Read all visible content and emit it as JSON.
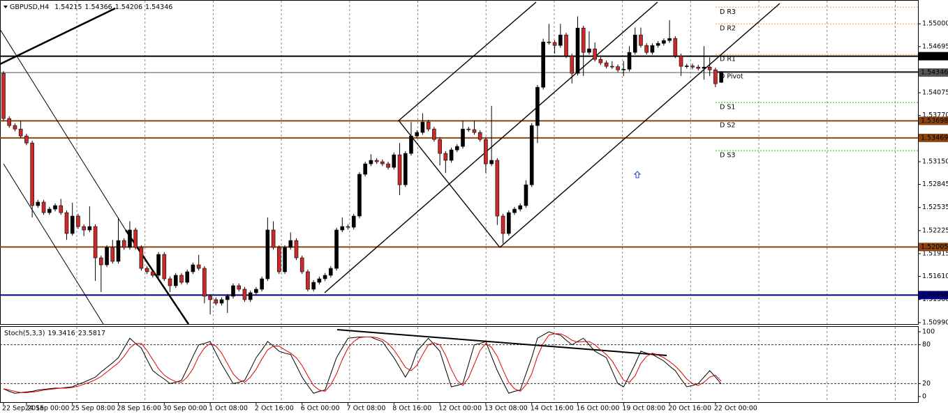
{
  "chart_data": [
    {
      "type": "candlestick",
      "title": "GBPUSD,H4",
      "categories": [
        "22 Sep 2015",
        null,
        null,
        null,
        "24 Sep 00:00",
        null,
        null,
        null,
        null,
        null,
        null,
        null,
        "25 Sep 08:00",
        null,
        null,
        null,
        null,
        null,
        null,
        null,
        "28 Sep 16:00",
        null,
        null,
        null,
        null,
        null,
        null,
        null,
        "30 Sep 00:00",
        null,
        null,
        null,
        null,
        null,
        null,
        null,
        "1 Oct 08:00",
        null,
        null,
        null,
        null,
        null,
        null,
        null,
        "2 Oct 16:00",
        null,
        null,
        null,
        null,
        null,
        null,
        null,
        "6 Oct 00:00",
        null,
        null,
        null,
        null,
        null,
        null,
        null,
        "7 Oct 08:00",
        null,
        null,
        null,
        null,
        null,
        null,
        null,
        "8 Oct 16:00",
        null,
        null,
        null,
        null,
        null,
        null,
        null,
        "12 Oct 00:00",
        null,
        null,
        null,
        null,
        null,
        null,
        null,
        "13 Oct 08:00",
        null,
        null,
        null,
        null,
        null,
        null,
        null,
        "14 Oct 16:00",
        null,
        null,
        null,
        null,
        null,
        null,
        null,
        "16 Oct 00:00",
        null,
        null,
        null,
        null,
        null,
        null,
        null,
        "19 Oct 08:00",
        null,
        null,
        null,
        null,
        null,
        null,
        null,
        "20 Oct 16:00",
        null,
        null,
        null,
        null,
        null,
        null,
        null,
        "22 Oct 00:00",
        null
      ],
      "open": [
        1.54336,
        1.53729,
        1.53635,
        1.53588,
        1.53495,
        1.53401,
        1.5256,
        1.52607,
        1.52466,
        1.52513,
        1.5256,
        1.52466,
        1.52186,
        1.5242,
        1.52279,
        1.52233,
        1.52279,
        1.51859,
        1.51765,
        1.51999,
        1.51812,
        1.52092,
        1.51999,
        1.52233,
        1.51999,
        1.51718,
        1.51672,
        1.51625,
        1.51905,
        1.51578,
        1.51485,
        1.51625,
        1.51531,
        1.51672,
        1.51765,
        1.51718,
        1.51344,
        1.51298,
        1.51251,
        1.51298,
        1.51344,
        1.51485,
        1.51438,
        1.51298,
        1.51391,
        1.51438,
        1.51578,
        1.52233,
        1.51999,
        1.51672,
        1.51999,
        1.52092,
        1.51859,
        1.51672,
        1.51438,
        1.51531,
        1.51578,
        1.51625,
        1.51718,
        1.52233,
        1.52279,
        1.5227,
        1.5242,
        1.52981,
        1.53121,
        1.53168,
        1.53149,
        1.53121,
        1.53074,
        1.53242,
        1.5284,
        1.53261,
        1.53495,
        1.53542,
        1.53682,
        1.53588,
        1.53448,
        1.53261,
        1.53168,
        1.53308,
        1.53355,
        1.53588,
        1.5358,
        1.53542,
        1.53448,
        1.53121,
        1.53168,
        1.5242,
        1.52186,
        1.52466,
        1.52513,
        1.5256,
        1.5284,
        1.53635,
        1.54149,
        1.54757,
        1.5475,
        1.5471,
        1.54851,
        1.5457,
        1.54336,
        1.54944,
        1.54617,
        1.54664,
        1.54523,
        1.54477,
        1.5443,
        1.54425,
        1.54383,
        1.5439,
        1.54617,
        1.54851,
        1.5471,
        1.54617,
        1.5471,
        1.54738,
        1.54776,
        1.54804,
        1.5457,
        1.5443,
        1.54435,
        1.5442,
        1.54402,
        1.5442,
        1.54383,
        1.54215
      ],
      "high": [
        1.54366,
        1.53759,
        1.53665,
        1.537,
        1.53525,
        1.53431,
        1.52637,
        1.52637,
        1.52543,
        1.5259,
        1.5265,
        1.52496,
        1.526,
        1.5245,
        1.52309,
        1.5255,
        1.52309,
        1.51889,
        1.52029,
        1.521,
        1.524,
        1.52122,
        1.5235,
        1.52263,
        1.52029,
        1.51748,
        1.51702,
        1.51935,
        1.51935,
        1.51608,
        1.51655,
        1.51655,
        1.51702,
        1.51795,
        1.519,
        1.51748,
        1.51374,
        1.51328,
        1.51328,
        1.51374,
        1.51515,
        1.51515,
        1.51468,
        1.51421,
        1.51468,
        1.51608,
        1.524,
        1.5235,
        1.52029,
        1.52029,
        1.522,
        1.52122,
        1.51889,
        1.51702,
        1.51561,
        1.51608,
        1.51655,
        1.51748,
        1.52263,
        1.524,
        1.52309,
        1.5245,
        1.53011,
        1.53151,
        1.5325,
        1.53198,
        1.53179,
        1.53151,
        1.53272,
        1.534,
        1.53291,
        1.53682,
        1.53572,
        1.538,
        1.53712,
        1.53618,
        1.53478,
        1.53291,
        1.53338,
        1.53385,
        1.537,
        1.53618,
        1.537,
        1.53572,
        1.53478,
        1.539,
        1.53198,
        1.5245,
        1.52496,
        1.52543,
        1.5259,
        1.529,
        1.53665,
        1.54179,
        1.548,
        1.55,
        1.5478,
        1.55,
        1.54881,
        1.546,
        1.551,
        1.54974,
        1.549,
        1.5475,
        1.54553,
        1.54507,
        1.545,
        1.54455,
        1.545,
        1.547,
        1.5495,
        1.5495,
        1.5474,
        1.5474,
        1.54768,
        1.54806,
        1.5505,
        1.54834,
        1.546,
        1.54465,
        1.54465,
        1.5445,
        1.547,
        1.5455,
        1.54413,
        1.54366
      ],
      "low": [
        1.53699,
        1.53605,
        1.53558,
        1.53465,
        1.53371,
        1.524,
        1.5253,
        1.52436,
        1.52436,
        1.52483,
        1.52436,
        1.521,
        1.52156,
        1.52249,
        1.5215,
        1.52203,
        1.5155,
        1.514,
        1.51735,
        1.51782,
        1.51782,
        1.51969,
        1.51969,
        1.51969,
        1.51688,
        1.51642,
        1.51595,
        1.51595,
        1.51548,
        1.514,
        1.51455,
        1.51501,
        1.51501,
        1.51642,
        1.51688,
        1.5125,
        1.511,
        1.51221,
        1.51221,
        1.5112,
        1.51314,
        1.51408,
        1.51268,
        1.51268,
        1.51361,
        1.51408,
        1.51548,
        1.51969,
        1.51642,
        1.51642,
        1.51969,
        1.51829,
        1.51642,
        1.51408,
        1.51408,
        1.51501,
        1.51548,
        1.51595,
        1.51688,
        1.52203,
        1.5224,
        1.5224,
        1.5239,
        1.52951,
        1.53091,
        1.53119,
        1.53091,
        1.53044,
        1.53044,
        1.527,
        1.5281,
        1.53231,
        1.53465,
        1.53512,
        1.53558,
        1.53418,
        1.531,
        1.53,
        1.53138,
        1.53278,
        1.53325,
        1.5355,
        1.53512,
        1.53418,
        1.53,
        1.53091,
        1.523,
        1.5205,
        1.52156,
        1.52436,
        1.52483,
        1.5253,
        1.5281,
        1.534,
        1.54119,
        1.5472,
        1.546,
        1.5468,
        1.5454,
        1.542,
        1.54306,
        1.543,
        1.54587,
        1.54493,
        1.54447,
        1.544,
        1.54395,
        1.54353,
        1.543,
        1.5436,
        1.54587,
        1.5468,
        1.54587,
        1.54587,
        1.5468,
        1.54708,
        1.54746,
        1.5454,
        1.543,
        1.544,
        1.5439,
        1.54372,
        1.5425,
        1.543,
        1.5415,
        1.54206
      ],
      "close": [
        1.53729,
        1.53635,
        1.53588,
        1.53495,
        1.53401,
        1.5256,
        1.52607,
        1.52466,
        1.52513,
        1.5256,
        1.52466,
        1.52186,
        1.5242,
        1.52279,
        1.52233,
        1.52279,
        1.51859,
        1.51765,
        1.51999,
        1.51812,
        1.52092,
        1.51999,
        1.52233,
        1.51999,
        1.51718,
        1.51672,
        1.51625,
        1.51905,
        1.51578,
        1.51485,
        1.51625,
        1.51531,
        1.51672,
        1.51765,
        1.51718,
        1.51344,
        1.51298,
        1.51251,
        1.51298,
        1.51344,
        1.51485,
        1.51438,
        1.51298,
        1.51391,
        1.51438,
        1.51578,
        1.52233,
        1.51999,
        1.51672,
        1.51999,
        1.52092,
        1.51859,
        1.51672,
        1.51438,
        1.51531,
        1.51578,
        1.51625,
        1.51718,
        1.52233,
        1.52279,
        1.5227,
        1.5242,
        1.52981,
        1.53121,
        1.53168,
        1.53149,
        1.53121,
        1.53074,
        1.53242,
        1.5284,
        1.53261,
        1.53495,
        1.53542,
        1.53682,
        1.53588,
        1.53448,
        1.53261,
        1.53168,
        1.53308,
        1.53355,
        1.53588,
        1.5358,
        1.53542,
        1.53448,
        1.53121,
        1.53168,
        1.5242,
        1.52186,
        1.52466,
        1.52513,
        1.5256,
        1.5284,
        1.53635,
        1.54149,
        1.54757,
        1.5475,
        1.5471,
        1.54851,
        1.5457,
        1.54336,
        1.54944,
        1.54617,
        1.54664,
        1.54523,
        1.54477,
        1.5443,
        1.54425,
        1.54383,
        1.5439,
        1.54617,
        1.54851,
        1.5471,
        1.54617,
        1.5471,
        1.54738,
        1.54776,
        1.54804,
        1.5457,
        1.5443,
        1.54435,
        1.5442,
        1.54402,
        1.5442,
        1.54383,
        1.54196,
        1.54346
      ],
      "up_color": "#000000",
      "down_color": "#cc2a2a",
      "ylim": [
        1.5097,
        1.5532
      ],
      "yticks": [
        {
          "value": 1.55,
          "label": "1.55000"
        },
        1.54695,
        1.54075,
        {
          "value": 1.5377,
          "label": "1.53770"
        },
        {
          "value": 1.5315,
          "label": "1.53150"
        },
        1.52845,
        1.52535,
        1.52225,
        1.51915,
        {
          "value": 1.5161,
          "label": "1.51610"
        },
        {
          "value": 1.513,
          "label": "1.51300"
        },
        {
          "value": 1.5099,
          "label": "1.50990"
        }
      ],
      "levels": [
        {
          "value": 1.54566,
          "color": "#000000"
        },
        {
          "value": 1.54346,
          "color": "#555555"
        },
        {
          "value": 1.53698,
          "color": "#8b4513"
        },
        {
          "value": 1.53469,
          "color": "#8b4513"
        },
        {
          "value": 1.52005,
          "color": "#8b4513"
        },
        {
          "value": 1.51359,
          "color": "#000080"
        }
      ],
      "pivots": [
        {
          "name": "D R3",
          "value": 1.55224,
          "color": "#f0a030"
        },
        {
          "name": "D R2",
          "value": 1.55,
          "color": "#f0a030"
        },
        {
          "name": "D R1",
          "value": 1.54589,
          "color": "#f0a030"
        },
        {
          "name": "D Pivot",
          "value": 1.54355,
          "color": "#000000"
        },
        {
          "name": "D S1",
          "value": 1.53944,
          "color": "#22bb22"
        },
        {
          "name": "D S2",
          "value": 1.537,
          "color": "#22bb22"
        },
        {
          "name": "D S3",
          "value": 1.53298,
          "color": "#22bb22"
        }
      ],
      "grid": true
    },
    {
      "type": "line",
      "title": "Stoch(5,3,3)",
      "series": [
        {
          "color": "#000000",
          "values": [
            12,
            8,
            5,
            6,
            7,
            8,
            10,
            11,
            12,
            13,
            13,
            14,
            15,
            19,
            22,
            26,
            30,
            38,
            45,
            52,
            60,
            75,
            90,
            82,
            75,
            57,
            40,
            33,
            27,
            20,
            22,
            25,
            43,
            62,
            80,
            82,
            85,
            67,
            50,
            35,
            20,
            22,
            25,
            42,
            60,
            72,
            85,
            78,
            70,
            67,
            65,
            48,
            30,
            17,
            5,
            8,
            10,
            35,
            60,
            75,
            90,
            91,
            92,
            92,
            92,
            88,
            85,
            72,
            60,
            45,
            30,
            45,
            70,
            80,
            90,
            80,
            70,
            42,
            15,
            17,
            20,
            50,
            80,
            82,
            85,
            62,
            40,
            22,
            5,
            8,
            10,
            35,
            60,
            90,
            95,
            100,
            97,
            95,
            87,
            80,
            85,
            90,
            80,
            70,
            65,
            60,
            40,
            20,
            15,
            32,
            50,
            70,
            67,
            65,
            60,
            55,
            47,
            40,
            27,
            15,
            17,
            20,
            30,
            40,
            30,
            19.3416
          ]
        },
        {
          "color": "#e00000",
          "values": [
            12,
            10,
            8,
            6,
            6,
            7,
            8,
            10,
            11,
            12,
            13,
            13,
            14,
            16,
            19,
            22,
            26,
            31,
            38,
            45,
            52,
            62,
            75,
            82,
            82,
            71,
            57,
            43,
            33,
            27,
            23,
            22,
            30,
            43,
            62,
            75,
            82,
            78,
            67,
            51,
            35,
            26,
            22,
            30,
            42,
            58,
            72,
            78,
            78,
            72,
            67,
            60,
            48,
            32,
            17,
            10,
            8,
            18,
            35,
            57,
            75,
            85,
            91,
            92,
            92,
            91,
            88,
            82,
            72,
            59,
            45,
            40,
            48,
            65,
            80,
            83,
            80,
            64,
            42,
            25,
            17,
            29,
            50,
            71,
            82,
            76,
            62,
            41,
            22,
            12,
            8,
            18,
            35,
            62,
            82,
            95,
            97,
            97,
            93,
            87,
            84,
            85,
            85,
            80,
            72,
            65,
            55,
            40,
            25,
            22,
            32,
            51,
            62,
            67,
            64,
            60,
            54,
            47,
            38,
            27,
            20,
            17,
            22,
            30,
            33,
            23.5817
          ]
        }
      ],
      "ylim": [
        -8.7,
        107.6
      ],
      "yticks": [
        0,
        20,
        80,
        100
      ],
      "levels": [
        20,
        80
      ]
    }
  ]
}
